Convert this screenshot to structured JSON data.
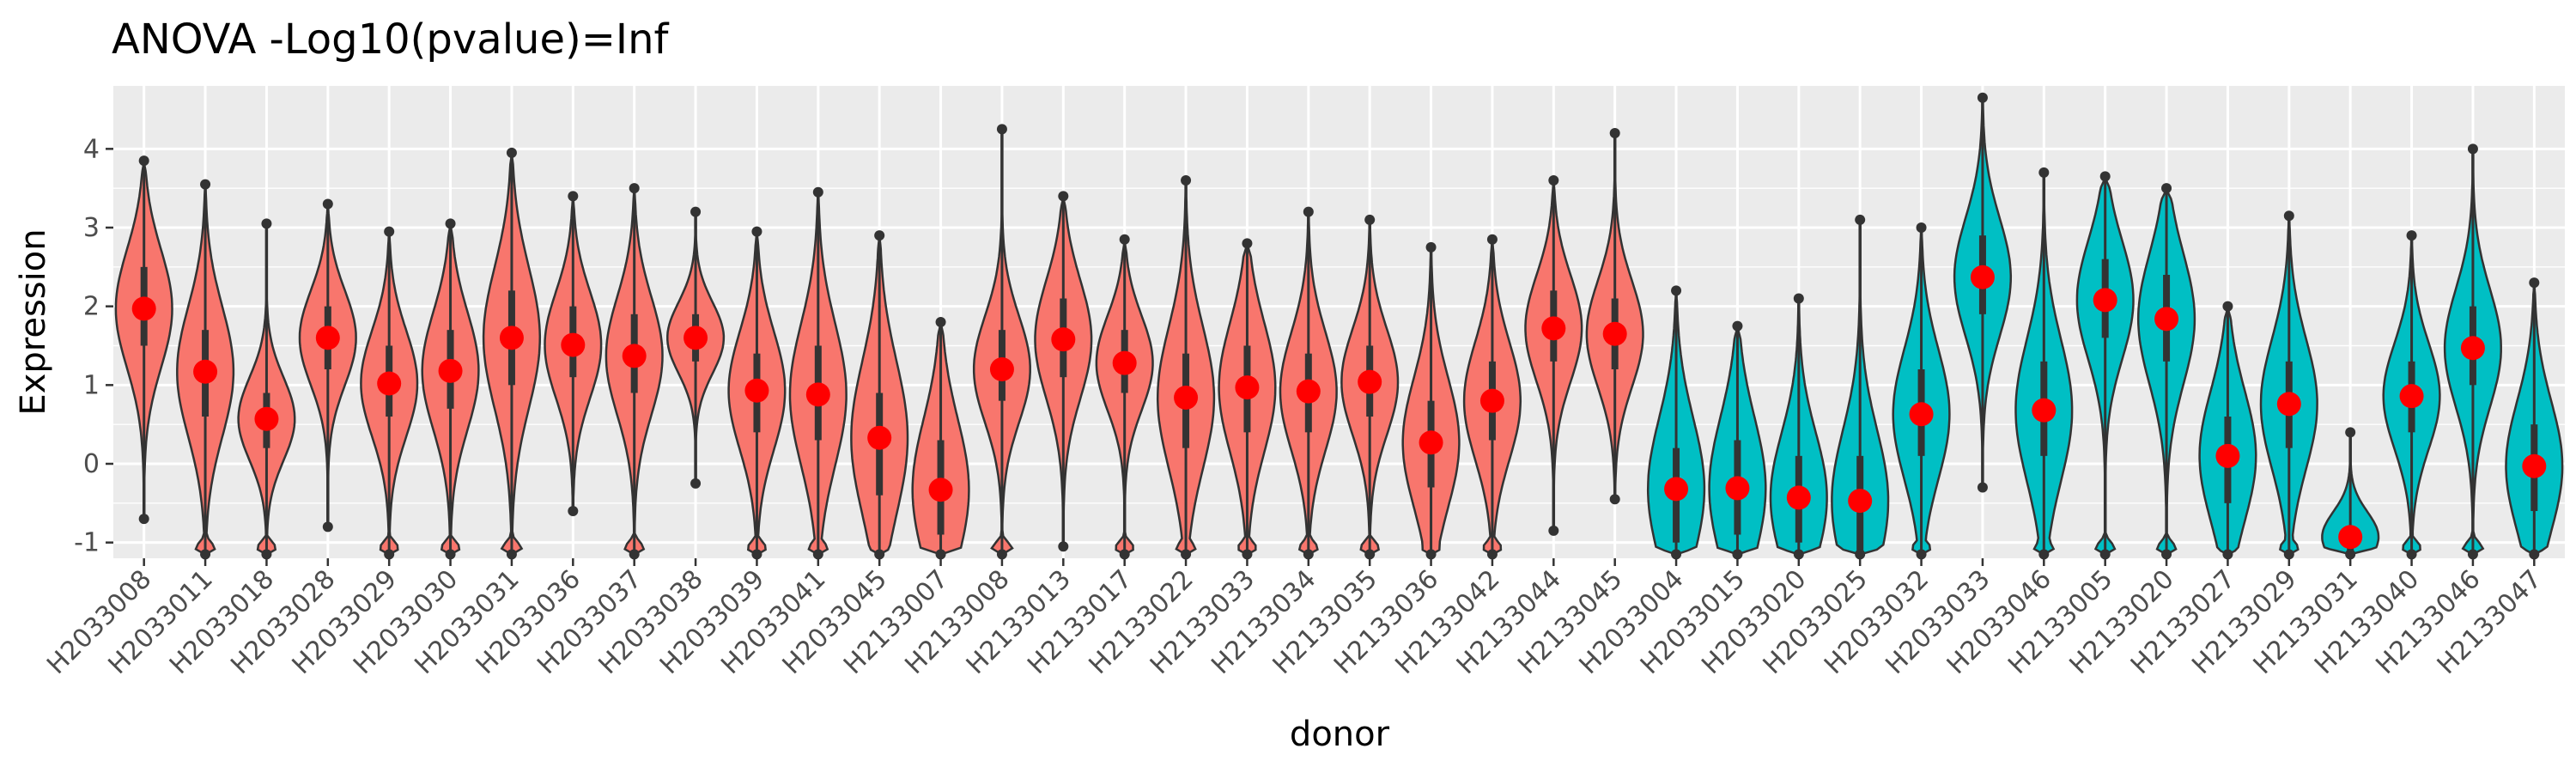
{
  "chart_data": {
    "type": "violin",
    "title": "ANOVA -Log10(pvalue)=Inf",
    "xlabel": "donor",
    "ylabel": "Expression",
    "ylim": [
      -1.2,
      4.8
    ],
    "yticks": [
      -1,
      0,
      1,
      2,
      3,
      4
    ],
    "grid": true,
    "legend": "none",
    "colors": {
      "group_a": "#F8766D",
      "group_b": "#00BFC4",
      "mean_point": "#FF0000",
      "panel_bg": "#EBEBEB",
      "grid": "#FFFFFF",
      "outline": "#333333"
    },
    "categories": [
      "H2033008",
      "H2033011",
      "H2033018",
      "H2033028",
      "H2033029",
      "H2033030",
      "H2033031",
      "H2033036",
      "H2033037",
      "H2033038",
      "H2033039",
      "H2033041",
      "H2033045",
      "H2133007",
      "H2133008",
      "H2133013",
      "H2133017",
      "H2133022",
      "H2133033",
      "H2133034",
      "H2133035",
      "H2133036",
      "H2133042",
      "H2133044",
      "H2133045",
      "H2033004",
      "H2033015",
      "H2033020",
      "H2033025",
      "H2033032",
      "H2033033",
      "H2033046",
      "H2133005",
      "H2133020",
      "H2133027",
      "H2133029",
      "H2133031",
      "H2133040",
      "H2133046",
      "H2133047"
    ],
    "groups": [
      "a",
      "a",
      "a",
      "a",
      "a",
      "a",
      "a",
      "a",
      "a",
      "a",
      "a",
      "a",
      "a",
      "a",
      "a",
      "a",
      "a",
      "a",
      "a",
      "a",
      "a",
      "a",
      "a",
      "a",
      "a",
      "b",
      "b",
      "b",
      "b",
      "b",
      "b",
      "b",
      "b",
      "b",
      "b",
      "b",
      "b",
      "b",
      "b",
      "b"
    ],
    "means": [
      1.97,
      1.17,
      0.57,
      1.6,
      1.02,
      1.18,
      1.6,
      1.51,
      1.37,
      1.6,
      0.93,
      0.88,
      0.33,
      -0.33,
      1.2,
      1.58,
      1.28,
      0.84,
      0.97,
      0.92,
      1.04,
      0.27,
      0.8,
      1.72,
      1.65,
      -0.32,
      -0.31,
      -0.43,
      -0.47,
      0.63,
      2.37,
      0.68,
      2.08,
      1.84,
      0.1,
      0.76,
      -0.93,
      0.86,
      1.47,
      -0.03
    ],
    "min": [
      -0.7,
      -1.15,
      -1.15,
      -0.8,
      -1.15,
      -1.15,
      -1.15,
      -0.6,
      -1.15,
      -0.25,
      -1.15,
      -1.15,
      -1.15,
      -1.15,
      -1.15,
      -1.05,
      -1.15,
      -1.15,
      -1.15,
      -1.15,
      -1.15,
      -1.15,
      -1.15,
      -0.85,
      -0.45,
      -1.15,
      -1.15,
      -1.15,
      -1.15,
      -1.15,
      -0.3,
      -1.15,
      -1.15,
      -1.15,
      -1.15,
      -1.15,
      -1.15,
      -1.15,
      -1.15,
      -1.15
    ],
    "max": [
      3.85,
      3.55,
      3.05,
      3.3,
      2.95,
      3.05,
      3.95,
      3.4,
      3.5,
      3.2,
      2.95,
      3.45,
      2.9,
      1.8,
      4.25,
      3.4,
      2.85,
      3.6,
      2.8,
      3.2,
      3.1,
      2.75,
      2.85,
      3.6,
      4.2,
      2.2,
      1.75,
      2.1,
      3.1,
      3.0,
      4.65,
      3.7,
      3.65,
      3.5,
      2.0,
      3.15,
      0.4,
      2.9,
      4.0,
      2.3
    ],
    "q1": [
      1.5,
      0.6,
      0.2,
      1.2,
      0.6,
      0.7,
      1.0,
      1.1,
      0.9,
      1.3,
      0.4,
      0.3,
      -0.4,
      -0.9,
      0.8,
      1.1,
      0.9,
      0.2,
      0.4,
      0.4,
      0.6,
      -0.3,
      0.3,
      1.3,
      1.2,
      -1.0,
      -0.9,
      -1.0,
      -1.1,
      0.1,
      1.9,
      0.1,
      1.6,
      1.3,
      -0.5,
      0.2,
      -1.1,
      0.4,
      1.0,
      -0.6
    ],
    "q3": [
      2.5,
      1.7,
      0.9,
      2.0,
      1.5,
      1.7,
      2.2,
      2.0,
      1.9,
      1.9,
      1.4,
      1.5,
      0.9,
      0.3,
      1.7,
      2.1,
      1.7,
      1.4,
      1.5,
      1.4,
      1.5,
      0.8,
      1.3,
      2.2,
      2.1,
      0.2,
      0.3,
      0.1,
      0.1,
      1.2,
      2.9,
      1.3,
      2.6,
      2.4,
      0.6,
      1.3,
      -0.8,
      1.3,
      2.0,
      0.5
    ]
  }
}
